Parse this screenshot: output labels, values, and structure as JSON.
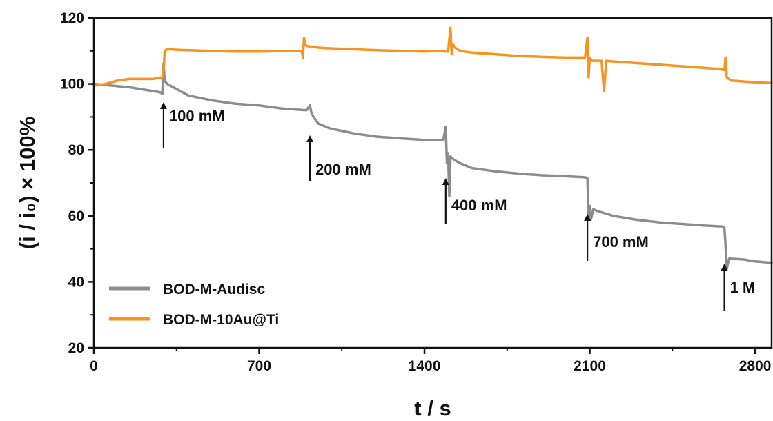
{
  "chart_data": {
    "type": "line",
    "xlabel": "t / s",
    "ylabel": "(i / i₀) × 100%",
    "xlim": [
      0,
      2870
    ],
    "ylim": [
      20,
      120
    ],
    "x_ticks": [
      "0",
      "700",
      "1400",
      "2100",
      "2800"
    ],
    "y_ticks": [
      "20",
      "40",
      "60",
      "80",
      "100",
      "120"
    ],
    "grid": false,
    "legend_position": "bottom-left",
    "series": [
      {
        "name": "BOD-M-Audisc",
        "color": "#8c8c8c",
        "x": [
          0,
          150,
          280,
          290,
          295,
          300,
          310,
          400,
          500,
          600,
          700,
          800,
          900,
          915,
          920,
          930,
          950,
          1000,
          1100,
          1200,
          1300,
          1400,
          1480,
          1490,
          1495,
          1500,
          1505,
          1510,
          1525,
          1550,
          1600,
          1700,
          1800,
          1900,
          2000,
          2080,
          2090,
          2095,
          2100,
          2105,
          2115,
          2130,
          2200,
          2300,
          2400,
          2500,
          2600,
          2660,
          2670,
          2675,
          2680,
          2690,
          2700,
          2750,
          2800,
          2870
        ],
        "y": [
          100,
          99,
          97.5,
          97,
          106,
          101,
          100,
          96.5,
          95,
          94,
          93.5,
          92.5,
          92,
          93.5,
          91.5,
          90,
          88,
          86.5,
          85,
          84,
          83.5,
          83,
          83,
          87,
          76,
          79,
          66,
          78,
          77,
          76,
          74.5,
          73.5,
          72.8,
          72.3,
          72,
          71.7,
          71.5,
          60,
          63,
          59,
          62,
          61.5,
          60,
          58.8,
          58,
          57.5,
          57,
          56.8,
          56.5,
          51,
          44,
          47,
          47,
          46.8,
          46.2,
          45.8
        ]
      },
      {
        "name": "BOD-M-10Au@Ti",
        "color": "#f7931e",
        "x": [
          0,
          50,
          100,
          150,
          200,
          250,
          290,
          295,
          300,
          310,
          400,
          500,
          600,
          700,
          800,
          880,
          885,
          890,
          895,
          900,
          950,
          1000,
          1100,
          1200,
          1300,
          1400,
          1450,
          1500,
          1510,
          1515,
          1520,
          1530,
          1550,
          1600,
          1700,
          1800,
          1900,
          2000,
          2080,
          2090,
          2095,
          2100,
          2105,
          2110,
          2150,
          2160,
          2170,
          2200,
          2300,
          2400,
          2500,
          2600,
          2650,
          2670,
          2675,
          2680,
          2690,
          2700,
          2800,
          2870
        ],
        "y": [
          99.5,
          100,
          101,
          101.5,
          101.5,
          101.5,
          102,
          104,
          110,
          110.5,
          110.2,
          110,
          109.8,
          109.8,
          110,
          110,
          108,
          114,
          112,
          111.5,
          111,
          110.8,
          110.5,
          110.2,
          110,
          109.8,
          110,
          109.8,
          117,
          109,
          112,
          111,
          110,
          109.5,
          109,
          108.5,
          108.2,
          108,
          108,
          114,
          102,
          108,
          107.5,
          107,
          107,
          98,
          107,
          106.8,
          106.3,
          105.8,
          105.3,
          104.8,
          104.5,
          104.2,
          108,
          102,
          101.5,
          101,
          100.5,
          100.3
        ]
      }
    ],
    "annotations": [
      {
        "text": "100 mM",
        "x": 295
      },
      {
        "text": "200 mM",
        "x": 915
      },
      {
        "text": "400 mM",
        "x": 1490
      },
      {
        "text": "700 mM",
        "x": 2090
      },
      {
        "text": "1 M",
        "x": 2670
      }
    ]
  }
}
